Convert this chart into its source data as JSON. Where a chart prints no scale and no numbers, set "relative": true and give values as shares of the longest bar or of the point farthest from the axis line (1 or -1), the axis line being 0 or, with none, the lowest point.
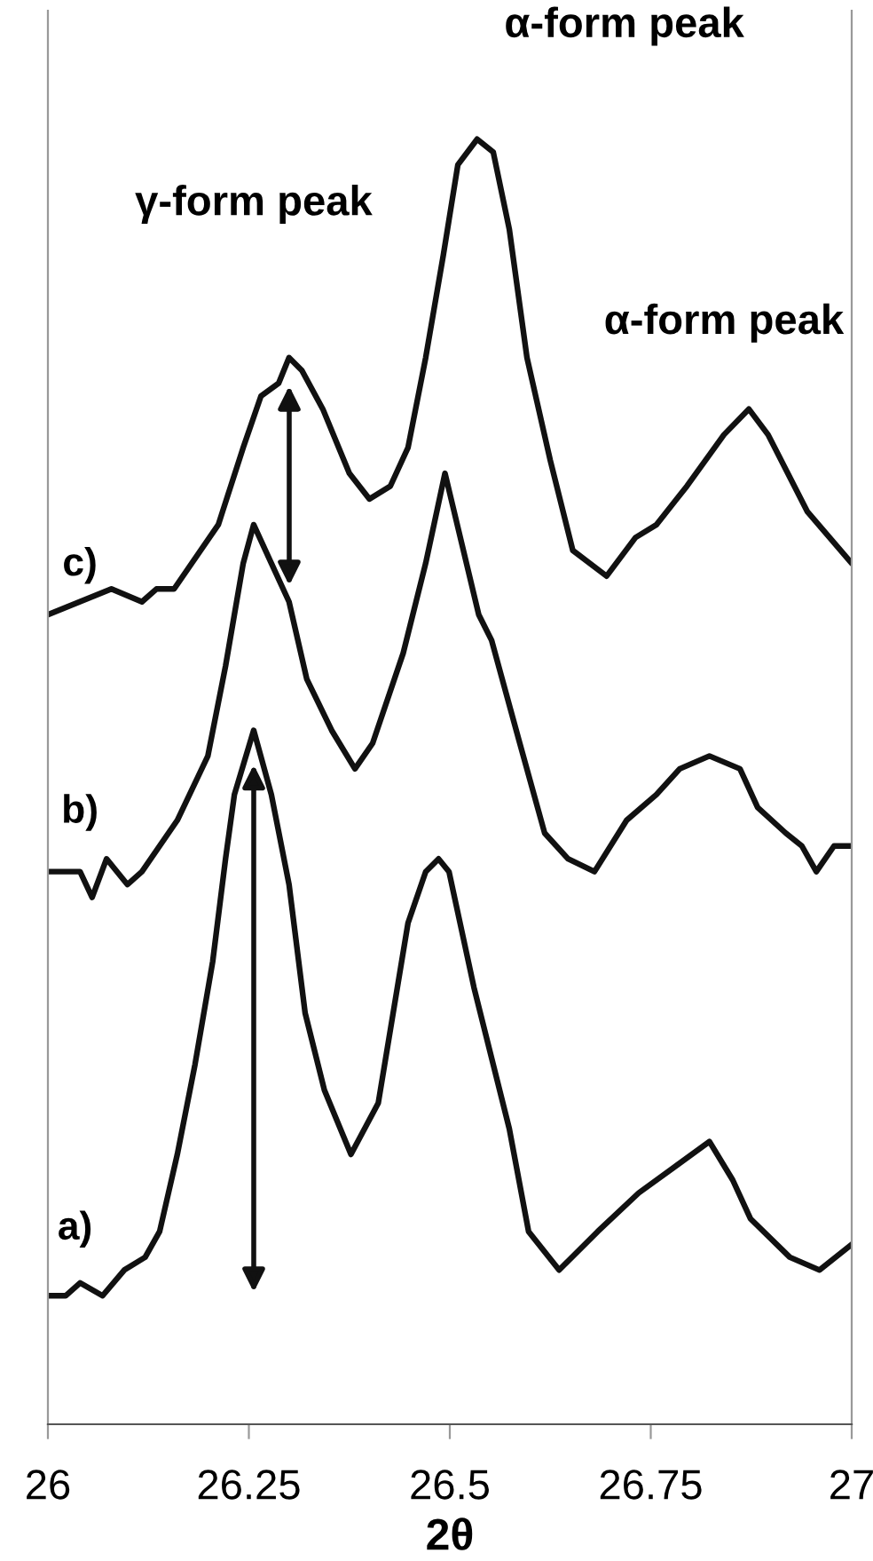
{
  "chart_data": {
    "type": "line",
    "relative": true,
    "xlabel": "2θ",
    "xlim": [
      26,
      27
    ],
    "xticks": [
      26,
      26.25,
      26.5,
      26.75,
      27
    ],
    "grid": false,
    "legend": false,
    "marker": "none",
    "line_style": "solid",
    "annotations": [
      "γ-form peak",
      "α-form peak",
      "α-form peak"
    ],
    "series": [
      {
        "name": "a)",
        "color": "#111111",
        "x": [
          26.0,
          26.022,
          26.04,
          26.068,
          26.095,
          26.121,
          26.139,
          26.161,
          26.183,
          26.205,
          26.221,
          26.232,
          26.256,
          26.278,
          26.3,
          26.32,
          26.344,
          26.377,
          26.411,
          26.448,
          26.47,
          26.486,
          26.499,
          26.53,
          26.574,
          26.598,
          26.636,
          26.684,
          26.735,
          26.779,
          26.823,
          26.852,
          26.874,
          26.923,
          26.96,
          27.0
        ],
        "values": [
          0.1,
          0.1,
          0.11,
          0.1,
          0.12,
          0.13,
          0.15,
          0.21,
          0.28,
          0.36,
          0.44,
          0.49,
          0.54,
          0.49,
          0.42,
          0.32,
          0.26,
          0.21,
          0.25,
          0.39,
          0.43,
          0.44,
          0.43,
          0.34,
          0.23,
          0.15,
          0.12,
          0.15,
          0.18,
          0.2,
          0.22,
          0.19,
          0.16,
          0.13,
          0.12,
          0.14
        ]
      },
      {
        "name": "b)",
        "color": "#111111",
        "x": [
          26.0,
          26.04,
          26.055,
          26.073,
          26.099,
          26.117,
          26.161,
          26.199,
          26.221,
          26.243,
          26.256,
          26.278,
          26.3,
          26.322,
          26.353,
          26.382,
          26.404,
          26.442,
          26.47,
          26.494,
          26.536,
          26.552,
          26.587,
          26.618,
          26.647,
          26.68,
          26.72,
          26.757,
          26.786,
          26.823,
          26.861,
          26.883,
          26.918,
          26.938,
          26.956,
          26.978,
          27.0
        ],
        "values": [
          0.43,
          0.43,
          0.41,
          0.44,
          0.42,
          0.43,
          0.47,
          0.52,
          0.59,
          0.67,
          0.7,
          0.67,
          0.64,
          0.58,
          0.54,
          0.51,
          0.53,
          0.6,
          0.67,
          0.74,
          0.63,
          0.61,
          0.53,
          0.46,
          0.44,
          0.43,
          0.47,
          0.49,
          0.51,
          0.52,
          0.51,
          0.48,
          0.46,
          0.45,
          0.43,
          0.45,
          0.45
        ]
      },
      {
        "name": "c)",
        "color": "#111111",
        "x": [
          26.0,
          26.079,
          26.117,
          26.135,
          26.157,
          26.212,
          26.243,
          26.265,
          26.287,
          26.3,
          26.316,
          26.342,
          26.375,
          26.4,
          26.426,
          26.448,
          26.47,
          26.492,
          26.51,
          26.534,
          26.554,
          26.574,
          26.596,
          26.625,
          26.653,
          26.695,
          26.731,
          26.757,
          26.795,
          26.841,
          26.872,
          26.896,
          26.945,
          27.0
        ],
        "values": [
          0.63,
          0.65,
          0.64,
          0.65,
          0.65,
          0.7,
          0.76,
          0.8,
          0.81,
          0.83,
          0.82,
          0.79,
          0.74,
          0.72,
          0.73,
          0.76,
          0.83,
          0.91,
          0.98,
          1.0,
          0.99,
          0.93,
          0.83,
          0.75,
          0.68,
          0.66,
          0.69,
          0.7,
          0.73,
          0.77,
          0.79,
          0.77,
          0.71,
          0.67
        ]
      }
    ]
  }
}
